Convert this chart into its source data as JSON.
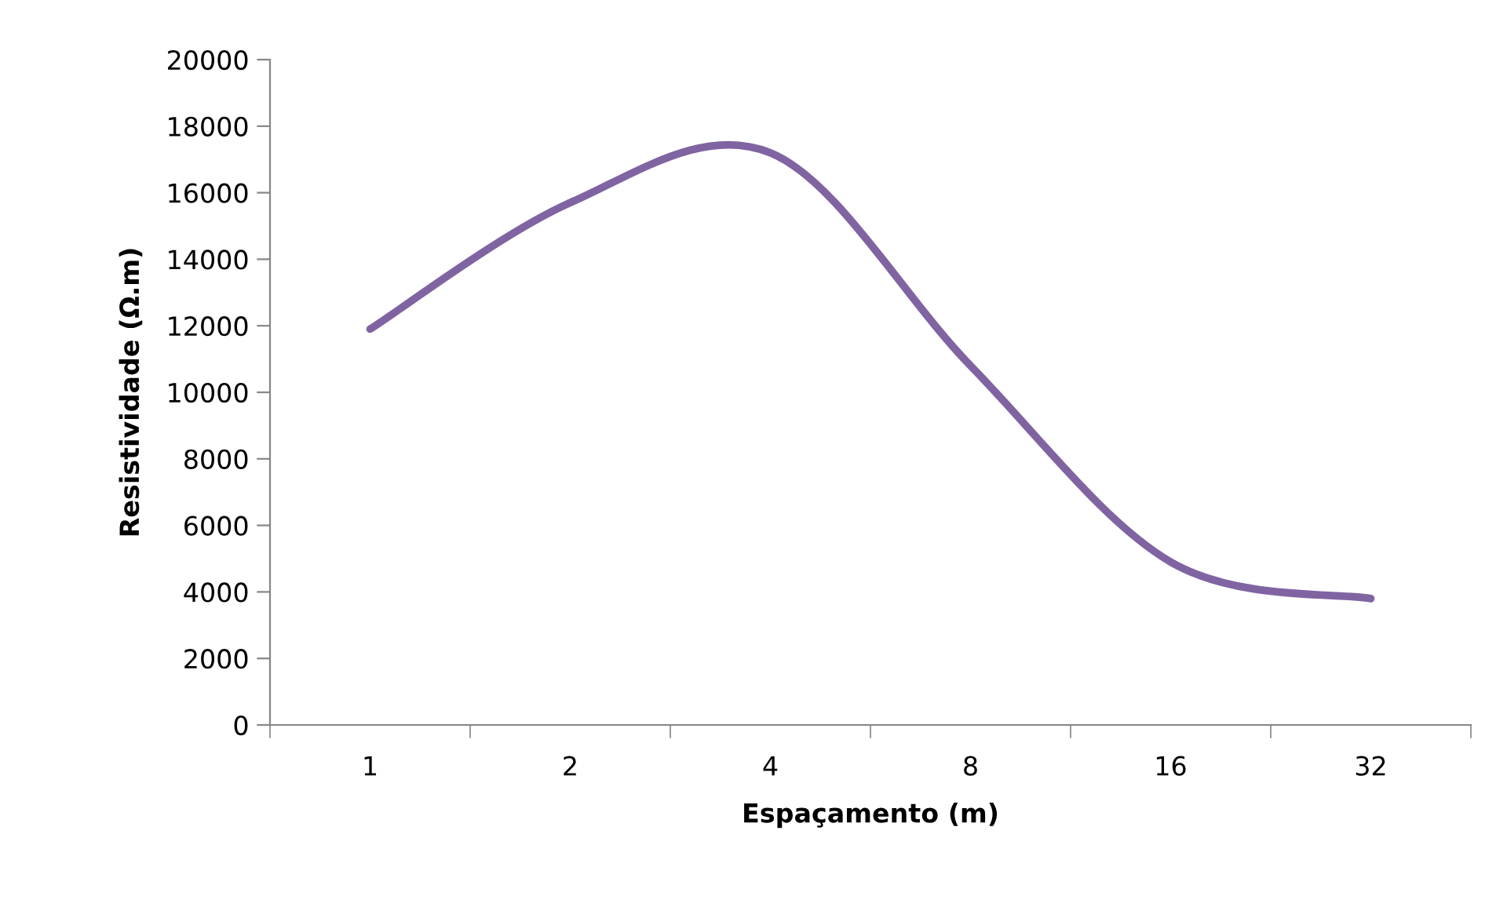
{
  "chart_data": {
    "type": "line",
    "xlabel": "Espaçamento (m)",
    "ylabel": "Resistividade (Ω.m)",
    "categories": [
      "1",
      "2",
      "4",
      "8",
      "16",
      "32"
    ],
    "series": [
      {
        "color": "#8064a2",
        "values": [
          11900,
          15700,
          17200,
          10800,
          4900,
          3800
        ]
      }
    ],
    "ylim": [
      0,
      20000
    ],
    "yticks": [
      0,
      2000,
      4000,
      6000,
      8000,
      10000,
      12000,
      14000,
      16000,
      18000,
      20000
    ],
    "grid": false,
    "marker": "none",
    "line_style": "solid"
  }
}
